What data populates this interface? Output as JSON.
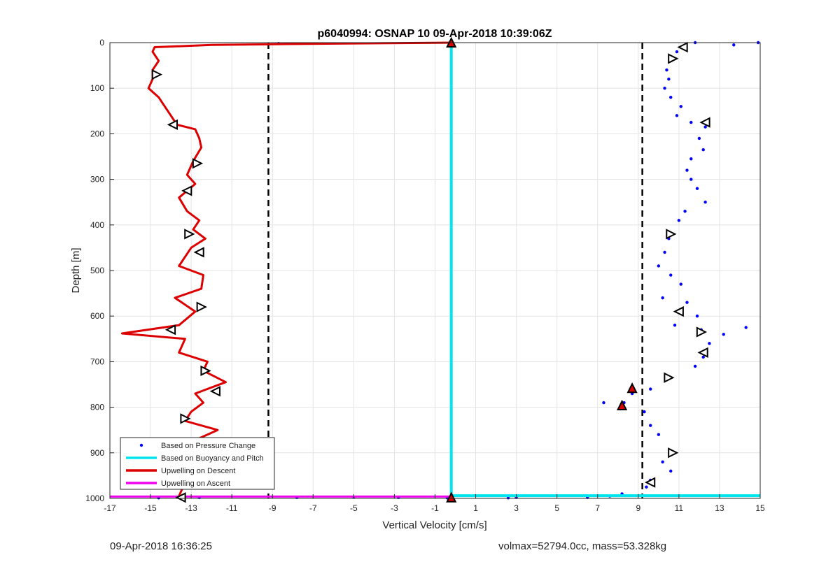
{
  "chart_data": {
    "type": "scatter",
    "title": "p6040994: OSNAP 10 09-Apr-2018 10:39:06Z",
    "xlabel": "Vertical Velocity [cm/s]",
    "ylabel": "Depth [m]",
    "xlim": [
      -17,
      15
    ],
    "ylim": [
      1000,
      0
    ],
    "y_reversed": true,
    "grid": true,
    "xticks": [
      -17,
      -15,
      -13,
      -11,
      -9,
      -7,
      -5,
      -3,
      -1,
      1,
      3,
      5,
      7,
      9,
      11,
      13,
      15
    ],
    "yticks": [
      0,
      100,
      200,
      300,
      400,
      500,
      600,
      700,
      800,
      900,
      1000
    ],
    "legend_position": "bottom-left",
    "dashed_vlines": [
      -9.2,
      9.2
    ],
    "series": [
      {
        "name": "Based on Pressure Change",
        "style": "dots",
        "color": "#0000ff",
        "points": [
          [
            11.8,
            0
          ],
          [
            13.7,
            5
          ],
          [
            14.9,
            0
          ],
          [
            10.9,
            20
          ],
          [
            10.6,
            40
          ],
          [
            10.4,
            60
          ],
          [
            10.5,
            80
          ],
          [
            10.3,
            100
          ],
          [
            10.6,
            120
          ],
          [
            11.1,
            140
          ],
          [
            10.9,
            160
          ],
          [
            11.6,
            175
          ],
          [
            12.3,
            185
          ],
          [
            12.0,
            210
          ],
          [
            12.2,
            235
          ],
          [
            11.6,
            255
          ],
          [
            11.4,
            280
          ],
          [
            11.6,
            300
          ],
          [
            11.9,
            320
          ],
          [
            12.3,
            350
          ],
          [
            11.3,
            370
          ],
          [
            11.0,
            390
          ],
          [
            10.5,
            430
          ],
          [
            10.3,
            460
          ],
          [
            10.0,
            490
          ],
          [
            10.6,
            510
          ],
          [
            11.1,
            530
          ],
          [
            10.2,
            560
          ],
          [
            11.4,
            570
          ],
          [
            11.9,
            600
          ],
          [
            10.8,
            620
          ],
          [
            12.1,
            630
          ],
          [
            13.2,
            640
          ],
          [
            14.3,
            625
          ],
          [
            12.5,
            660
          ],
          [
            12.2,
            690
          ],
          [
            11.8,
            710
          ],
          [
            10.4,
            735
          ],
          [
            9.6,
            760
          ],
          [
            8.7,
            770
          ],
          [
            8.3,
            790
          ],
          [
            7.3,
            790
          ],
          [
            9.3,
            810
          ],
          [
            9.6,
            840
          ],
          [
            10.0,
            860
          ],
          [
            10.8,
            900
          ],
          [
            10.2,
            920
          ],
          [
            10.6,
            940
          ],
          [
            9.4,
            975
          ],
          [
            9.6,
            960
          ],
          [
            8.2,
            990
          ],
          [
            7.6,
            995
          ],
          [
            6.5,
            998
          ],
          [
            3.0,
            998
          ],
          [
            2.6,
            999
          ],
          [
            -2.8,
            998
          ],
          [
            -5.0,
            997
          ],
          [
            -7.8,
            998
          ],
          [
            -8.7,
            2
          ],
          [
            -12.6,
            998
          ],
          [
            -14.6,
            999
          ],
          [
            -0.4,
            999
          ]
        ]
      },
      {
        "name": "Based on Buoyancy and Pitch",
        "style": "line",
        "color": "#00e5ee",
        "points": [
          [
            -0.2,
            0
          ],
          [
            -0.2,
            994
          ],
          [
            15,
            994
          ]
        ]
      },
      {
        "name": "Upwelling on Descent",
        "style": "line",
        "color": "#dd0000",
        "points": [
          [
            -0.2,
            0
          ],
          [
            -8.3,
            3
          ],
          [
            -12.0,
            5
          ],
          [
            -14.8,
            10
          ],
          [
            -14.9,
            20
          ],
          [
            -14.6,
            40
          ],
          [
            -14.9,
            60
          ],
          [
            -14.9,
            80
          ],
          [
            -15.1,
            100
          ],
          [
            -14.6,
            120
          ],
          [
            -14.3,
            140
          ],
          [
            -14.0,
            160
          ],
          [
            -13.7,
            180
          ],
          [
            -12.8,
            190
          ],
          [
            -12.6,
            210
          ],
          [
            -12.5,
            230
          ],
          [
            -12.9,
            260
          ],
          [
            -13.2,
            290
          ],
          [
            -12.8,
            310
          ],
          [
            -13.6,
            340
          ],
          [
            -13.2,
            370
          ],
          [
            -12.6,
            390
          ],
          [
            -12.9,
            410
          ],
          [
            -12.3,
            430
          ],
          [
            -13.0,
            450
          ],
          [
            -13.3,
            470
          ],
          [
            -13.6,
            490
          ],
          [
            -12.4,
            510
          ],
          [
            -12.5,
            540
          ],
          [
            -13.8,
            560
          ],
          [
            -12.8,
            590
          ],
          [
            -13.6,
            620
          ],
          [
            -16.4,
            638
          ],
          [
            -13.3,
            650
          ],
          [
            -13.6,
            680
          ],
          [
            -12.2,
            700
          ],
          [
            -12.4,
            720
          ],
          [
            -11.3,
            745
          ],
          [
            -12.8,
            770
          ],
          [
            -12.4,
            790
          ],
          [
            -13.0,
            810
          ],
          [
            -13.3,
            830
          ],
          [
            -11.7,
            850
          ],
          [
            -12.7,
            870
          ],
          [
            -11.5,
            895
          ],
          [
            -12.8,
            920
          ],
          [
            -13.2,
            950
          ],
          [
            -13.4,
            975
          ],
          [
            -13.6,
            995
          ]
        ]
      },
      {
        "name": "Upwelling on Ascent",
        "style": "line",
        "color": "#ee00ee",
        "points": [
          [
            -17,
            996
          ],
          [
            -0.2,
            996
          ]
        ]
      }
    ],
    "markers": {
      "descent_triangles": [
        [
          -14.7,
          70
        ],
        [
          -13.9,
          180
        ],
        [
          -12.7,
          265
        ],
        [
          -13.2,
          325
        ],
        [
          -13.1,
          420
        ],
        [
          -12.6,
          460
        ],
        [
          -12.5,
          580
        ],
        [
          -14.0,
          630
        ],
        [
          -12.3,
          720
        ],
        [
          -11.8,
          765
        ],
        [
          -13.3,
          825
        ],
        [
          -12.8,
          880
        ],
        [
          -12.1,
          920
        ],
        [
          -13.5,
          998
        ]
      ],
      "ascent_triangles": [
        [
          11.2,
          10
        ],
        [
          10.7,
          35
        ],
        [
          12.3,
          175
        ],
        [
          10.6,
          420
        ],
        [
          11.0,
          590
        ],
        [
          12.1,
          635
        ],
        [
          12.2,
          680
        ],
        [
          10.5,
          735
        ],
        [
          9.6,
          965
        ],
        [
          10.7,
          900
        ]
      ],
      "red_filled_triangles": [
        [
          -0.2,
          0
        ],
        [
          -0.2,
          998
        ],
        [
          8.7,
          758
        ],
        [
          8.2,
          796
        ]
      ]
    },
    "footer_left": "09-Apr-2018 16:36:25",
    "footer_right": "volmax=52794.0cc, mass=53.328kg"
  },
  "colors": {
    "grid": "#e3e3e3",
    "axis": "#262626",
    "dashed": "#000000"
  }
}
